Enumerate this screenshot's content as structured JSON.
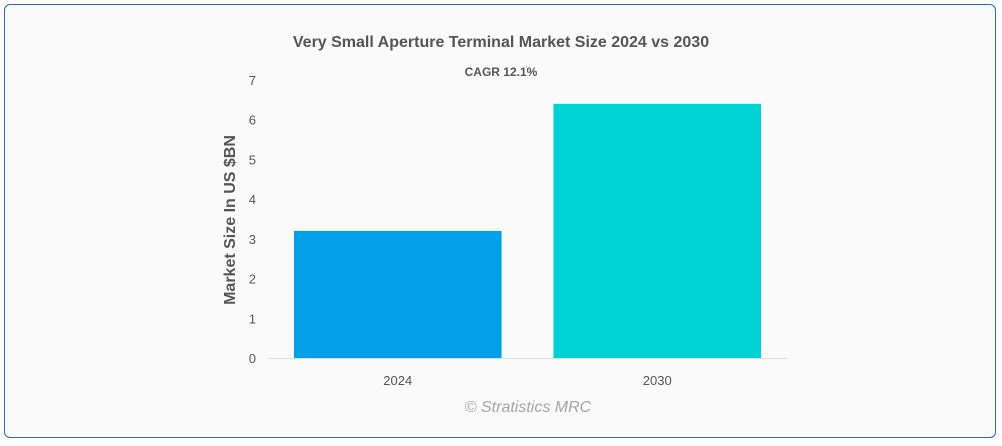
{
  "chart_data": {
    "type": "bar",
    "title": "Very Small Aperture Terminal Market Size 2024 vs 2030",
    "subtitle": "CAGR 12.1%",
    "xlabel": "",
    "ylabel": "Market Size In US $BN",
    "categories": [
      "2024",
      "2030"
    ],
    "values": [
      3.2,
      6.4
    ],
    "ylim": [
      0,
      7
    ],
    "yticks": [
      0,
      1,
      2,
      3,
      4,
      5,
      6,
      7
    ],
    "colors": [
      "#03a0ea",
      "#00d2d3"
    ],
    "grid": false,
    "legend": "none"
  },
  "watermark": "© Stratistics MRC"
}
